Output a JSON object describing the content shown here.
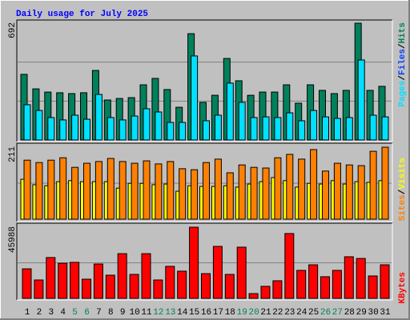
{
  "chart_data": [
    {
      "type": "bar",
      "title": "Daily usage for July 2025",
      "ylim": [
        0,
        692
      ],
      "yticks": [
        692
      ],
      "grid_divisions": 3,
      "legend_separator": "/",
      "series": [
        {
          "name": "Pages",
          "color": "#00e0ff",
          "values": [
            209,
            175,
            133,
            119,
            147,
            123,
            270,
            133,
            119,
            142,
            185,
            166,
            104,
            104,
            498,
            114,
            147,
            337,
            223,
            133,
            137,
            133,
            161,
            114,
            175,
            137,
            128,
            133,
            474,
            147,
            137
          ]
        },
        {
          "name": "Files",
          "color": "#0040ff",
          "values": null
        },
        {
          "name": "Hits",
          "color": "#00805c",
          "values": [
            389,
            303,
            284,
            280,
            275,
            280,
            412,
            237,
            246,
            251,
            327,
            365,
            299,
            194,
            630,
            223,
            265,
            483,
            351,
            265,
            284,
            284,
            327,
            218,
            327,
            294,
            275,
            294,
            692,
            294,
            318
          ]
        }
      ]
    },
    {
      "type": "bar",
      "ylim": [
        0,
        211
      ],
      "yticks": [
        211
      ],
      "grid_divisions": 2,
      "legend_separator": "/",
      "series": [
        {
          "name": "Sites",
          "color": "#ff8000",
          "values": [
            173,
            166,
            173,
            180,
            152,
            164,
            169,
            178,
            169,
            164,
            171,
            162,
            169,
            148,
            145,
            166,
            176,
            136,
            159,
            152,
            150,
            180,
            190,
            176,
            204,
            141,
            164,
            159,
            157,
            199,
            211
          ]
        },
        {
          "name": "Visits",
          "color": "#ffff00",
          "values": [
            117,
            101,
            98,
            110,
            113,
            110,
            110,
            110,
            91,
            105,
            105,
            101,
            103,
            82,
            98,
            96,
            96,
            98,
            94,
            103,
            110,
            122,
            113,
            94,
            105,
            103,
            113,
            103,
            110,
            108,
            113
          ]
        }
      ]
    },
    {
      "type": "bar",
      "ylim": [
        0,
        45988
      ],
      "yticks": [
        45988
      ],
      "grid_divisions": 2,
      "series": [
        {
          "name": "KBytes",
          "color": "#ff0000",
          "values": [
            19100,
            11900,
            26400,
            22700,
            23300,
            12400,
            22200,
            15000,
            28900,
            15500,
            28900,
            11900,
            20700,
            17600,
            45988,
            16000,
            33600,
            15500,
            33100,
            3100,
            7800,
            11400,
            41900,
            18100,
            21700,
            14000,
            18100,
            26900,
            25800,
            14500,
            21700
          ]
        }
      ],
      "categories": [
        "1",
        "2",
        "3",
        "4",
        "5",
        "6",
        "7",
        "8",
        "9",
        "10",
        "11",
        "12",
        "13",
        "14",
        "15",
        "16",
        "17",
        "18",
        "19",
        "20",
        "21",
        "22",
        "23",
        "24",
        "25",
        "26",
        "27",
        "28",
        "29",
        "30",
        "31"
      ],
      "category_colors": [
        "#000000",
        "#000000",
        "#000000",
        "#000000",
        "#00805c",
        "#00805c",
        "#000000",
        "#000000",
        "#000000",
        "#000000",
        "#000000",
        "#00805c",
        "#00805c",
        "#000000",
        "#000000",
        "#000000",
        "#000000",
        "#000000",
        "#00805c",
        "#00805c",
        "#000000",
        "#000000",
        "#000000",
        "#000000",
        "#000000",
        "#00805c",
        "#00805c",
        "#000000",
        "#000000",
        "#000000",
        "#000000"
      ]
    }
  ]
}
